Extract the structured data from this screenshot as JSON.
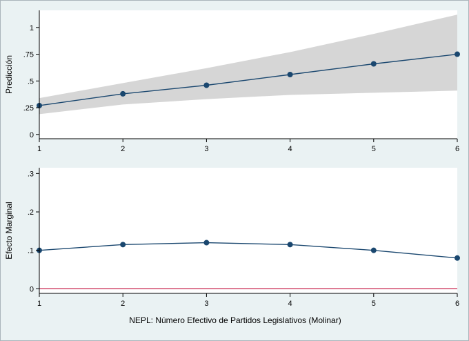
{
  "figure": {
    "background": "#eaf2f3",
    "plot_background": "#ffffff"
  },
  "chart_data": [
    {
      "type": "line",
      "title": "",
      "xlabel": "",
      "ylabel": "Predicción",
      "x": [
        1,
        2,
        3,
        4,
        5,
        6
      ],
      "series": [
        {
          "name": "Predicción",
          "values": [
            0.27,
            0.38,
            0.46,
            0.56,
            0.66,
            0.75
          ]
        }
      ],
      "band": {
        "name": "confidence-interval",
        "lower": [
          0.19,
          0.28,
          0.33,
          0.37,
          0.39,
          0.41
        ],
        "upper": [
          0.34,
          0.48,
          0.62,
          0.77,
          0.94,
          1.12
        ],
        "color": "#d6d6d6"
      },
      "ylim": [
        -0.04,
        1.16
      ],
      "yticks": [
        0,
        0.25,
        0.5,
        0.75,
        1
      ],
      "ytick_labels": [
        "0",
        ".25",
        ".5",
        ".75",
        "1"
      ],
      "xticks": [
        1,
        2,
        3,
        4,
        5,
        6
      ],
      "xtick_labels": [
        "1",
        "2",
        "3",
        "4",
        "5",
        "6"
      ],
      "grid": false,
      "legend": "none",
      "line_color": "#1a476f",
      "marker": "circle"
    },
    {
      "type": "line",
      "title": "",
      "xlabel": "NEPL: Número Efectivo de Partidos Legislativos (Molinar)",
      "ylabel": "Efecto Marginal",
      "x": [
        1,
        2,
        3,
        4,
        5,
        6
      ],
      "series": [
        {
          "name": "Efecto Marginal",
          "values": [
            0.1,
            0.115,
            0.12,
            0.115,
            0.1,
            0.08
          ]
        }
      ],
      "refline": {
        "y": 0,
        "color": "#c10534"
      },
      "ylim": [
        -0.012,
        0.315
      ],
      "yticks": [
        0,
        0.1,
        0.2,
        0.3
      ],
      "ytick_labels": [
        "0",
        ".1",
        ".2",
        ".3"
      ],
      "xticks": [
        1,
        2,
        3,
        4,
        5,
        6
      ],
      "xtick_labels": [
        "1",
        "2",
        "3",
        "4",
        "5",
        "6"
      ],
      "grid": false,
      "legend": "none",
      "line_color": "#1a476f",
      "marker": "circle"
    }
  ]
}
